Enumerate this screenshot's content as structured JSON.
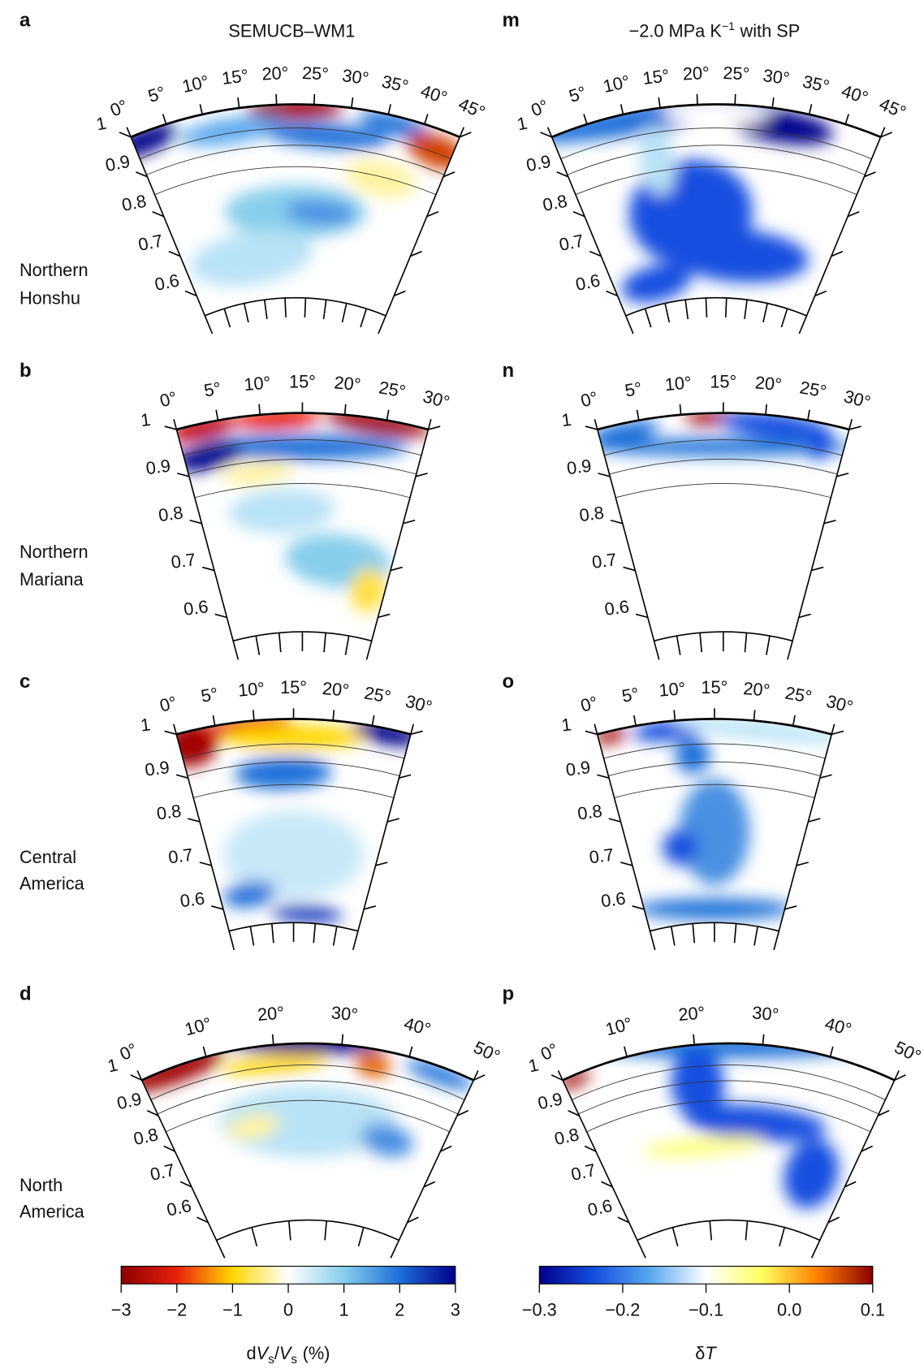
{
  "columns": [
    {
      "title": "SEMUCB–WM1"
    },
    {
      "title": "−2.0 MPa K",
      "title_sup": "−1",
      "title_end": "with SP"
    }
  ],
  "radius_ticks": [
    1,
    0.9,
    0.8,
    0.7,
    0.6
  ],
  "rows": [
    {
      "left_letter": "a",
      "right_letter": "m",
      "region": [
        "Northern",
        "Honshu"
      ],
      "angle_ticks": [
        {
          "value": 0,
          "label": "0°"
        },
        {
          "value": 5,
          "label": "5°"
        },
        {
          "value": 10,
          "label": "10°"
        },
        {
          "value": 15,
          "label": "15°"
        },
        {
          "value": 20,
          "label": "20°"
        },
        {
          "value": 25,
          "label": "25°"
        },
        {
          "value": 30,
          "label": "30°"
        },
        {
          "value": 35,
          "label": "35°"
        },
        {
          "value": 40,
          "label": "40°"
        },
        {
          "value": 45,
          "label": "45°"
        }
      ]
    },
    {
      "left_letter": "b",
      "right_letter": "n",
      "region": [
        "Northern",
        "Mariana"
      ],
      "angle_ticks": [
        {
          "value": 0,
          "label": "0°"
        },
        {
          "value": 5,
          "label": "5°"
        },
        {
          "value": 10,
          "label": "10°"
        },
        {
          "value": 15,
          "label": "15°"
        },
        {
          "value": 20,
          "label": "20°"
        },
        {
          "value": 25,
          "label": "25°"
        },
        {
          "value": 30,
          "label": "30°"
        }
      ]
    },
    {
      "left_letter": "c",
      "right_letter": "o",
      "region": [
        "Central",
        "America"
      ],
      "angle_ticks": [
        {
          "value": 0,
          "label": "0°"
        },
        {
          "value": 5,
          "label": "5°"
        },
        {
          "value": 10,
          "label": "10°"
        },
        {
          "value": 15,
          "label": "15°"
        },
        {
          "value": 20,
          "label": "20°"
        },
        {
          "value": 25,
          "label": "25°"
        },
        {
          "value": 30,
          "label": "30°"
        }
      ]
    },
    {
      "left_letter": "d",
      "right_letter": "p",
      "region": [
        "North",
        "America"
      ],
      "angle_ticks": [
        {
          "value": 0,
          "label": "0°"
        },
        {
          "value": 10,
          "label": "10°"
        },
        {
          "value": 20,
          "label": "20°"
        },
        {
          "value": 30,
          "label": "30°"
        },
        {
          "value": 40,
          "label": "40°"
        },
        {
          "value": 50,
          "label": "50°"
        }
      ]
    }
  ],
  "colorbars": [
    {
      "label": [
        "d",
        "V",
        "s",
        "/",
        "V",
        "s",
        "(%)"
      ],
      "lim": [
        -3,
        3
      ],
      "ticks": [
        {
          "value": -3,
          "label": "−3"
        },
        {
          "value": -2,
          "label": "−2"
        },
        {
          "value": -1,
          "label": "−1"
        },
        0,
        1,
        2,
        3
      ],
      "colors": [
        "#8b0000",
        "#e8210c",
        "#ffd700",
        "#ffffff",
        "#87ceeb",
        "#1e6fd9",
        "#00008b"
      ]
    },
    {
      "label": [
        "δ",
        "T"
      ],
      "lim": [
        -0.3,
        0.1
      ],
      "ticks": [
        {
          "value": -0.3,
          "label": "−0.3"
        },
        {
          "value": -0.2,
          "label": "−0.2"
        },
        {
          "value": -0.1,
          "label": "−0.1"
        },
        {
          "value": 0,
          "label": "0.0"
        },
        0.1
      ],
      "colors": [
        "#00008b",
        "#1550e0",
        "#5aa8ee",
        "#ffffff",
        "#ffff60",
        "#ff8000",
        "#8b0000"
      ]
    }
  ]
}
